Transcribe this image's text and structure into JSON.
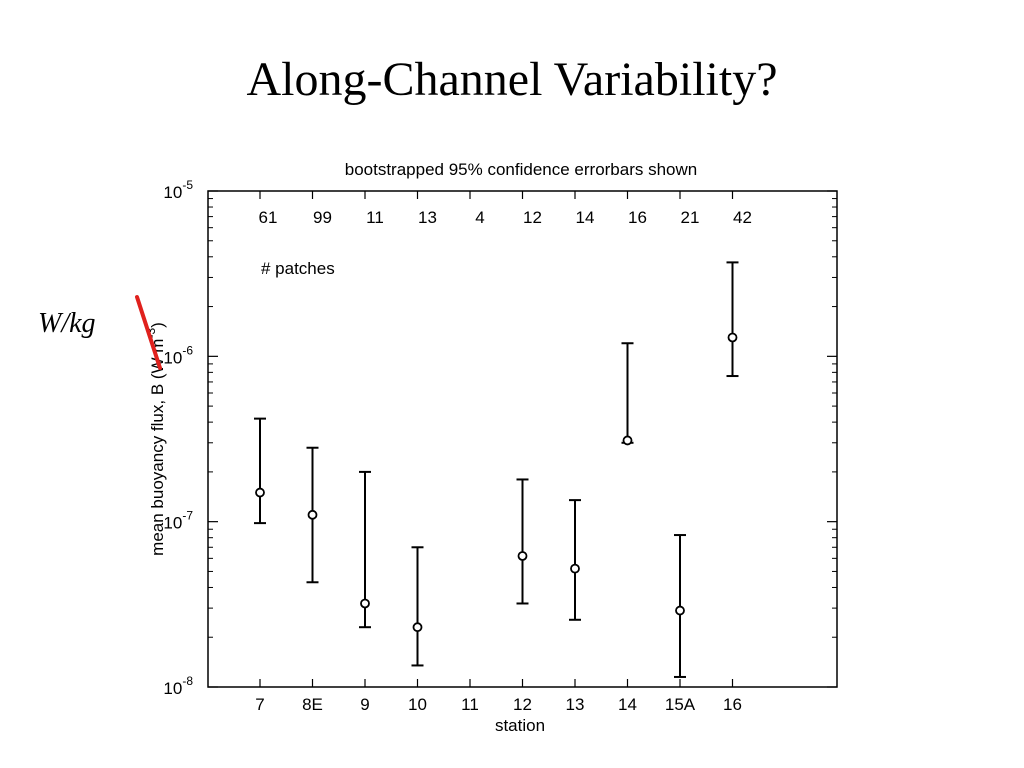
{
  "slide": {
    "title": "Along-Channel Variability?",
    "side_label": "W/kg"
  },
  "chart_data": {
    "type": "scatter",
    "title": "bootstrapped 95% confidence errorbars shown",
    "xlabel": "station",
    "ylabel": "mean buoyancy flux, B (W m",
    "ylabel_exponent": "-3",
    "ylabel_close": ")",
    "y_scale": "log",
    "ylim": [
      1e-08,
      1e-05
    ],
    "y_ticks": [
      {
        "value": 1e-08,
        "base": "10",
        "exp": "-8"
      },
      {
        "value": 1e-07,
        "base": "10",
        "exp": "-7"
      },
      {
        "value": 1e-06,
        "base": "10",
        "exp": "-6"
      },
      {
        "value": 1e-05,
        "base": "10",
        "exp": "-5"
      }
    ],
    "categories": [
      "7",
      "8E",
      "9",
      "10",
      "11",
      "12",
      "13",
      "14",
      "15A",
      "16"
    ],
    "patch_counts": [
      "61",
      "99",
      "11",
      "13",
      "4",
      "12",
      "14",
      "16",
      "21",
      "42"
    ],
    "patch_label": "# patches",
    "points": [
      {
        "station": "7",
        "mean": 1.5e-07,
        "lower": 9.8e-08,
        "upper": 4.2e-07
      },
      {
        "station": "8E",
        "mean": 1.1e-07,
        "lower": 4.3e-08,
        "upper": 2.8e-07
      },
      {
        "station": "9",
        "mean": 3.2e-08,
        "lower": 2.3e-08,
        "upper": 2e-07
      },
      {
        "station": "10",
        "mean": 2.3e-08,
        "lower": 1.35e-08,
        "upper": 7e-08
      },
      {
        "station": "12",
        "mean": 6.2e-08,
        "lower": 3.2e-08,
        "upper": 1.8e-07
      },
      {
        "station": "13",
        "mean": 5.2e-08,
        "lower": 2.55e-08,
        "upper": 1.35e-07
      },
      {
        "station": "14",
        "mean": 3.1e-07,
        "lower": 3e-07,
        "upper": 1.2e-06
      },
      {
        "station": "15A",
        "mean": 2.9e-08,
        "lower": 1.15e-08,
        "upper": 8.3e-08
      },
      {
        "station": "16",
        "mean": 1.3e-06,
        "lower": 7.6e-07,
        "upper": 3.7e-06
      }
    ],
    "grid": false,
    "annotation_color": "#e0211d"
  }
}
